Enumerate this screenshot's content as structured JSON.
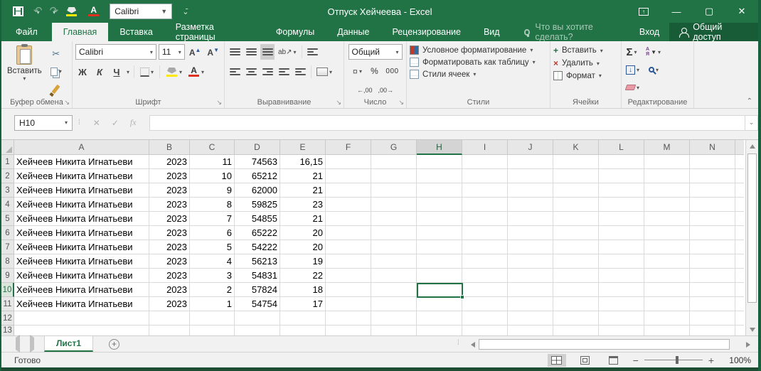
{
  "colors": {
    "excel_green": "#217346",
    "fill_yellow": "#ffe800",
    "font_red": "#e0301e"
  },
  "titlebar": {
    "title": "Отпуск Хейчеева - Excel",
    "font_combo": "Calibri"
  },
  "menu": {
    "file": "Файл",
    "tabs": [
      "Главная",
      "Вставка",
      "Разметка страницы",
      "Формулы",
      "Данные",
      "Рецензирование",
      "Вид"
    ],
    "tell_me": "Что вы хотите сделать?",
    "sign_in": "Вход",
    "share": "Общий доступ"
  },
  "ribbon": {
    "clipboard": {
      "paste": "Вставить",
      "label": "Буфер обмена"
    },
    "font": {
      "name": "Calibri",
      "size": "11",
      "bold": "Ж",
      "italic": "К",
      "underline": "Ч",
      "label": "Шрифт"
    },
    "alignment": {
      "label": "Выравнивание"
    },
    "number": {
      "format": "Общий",
      "percent": "%",
      "thousands": "000",
      "label": "Число"
    },
    "styles": {
      "conditional": "Условное форматирование",
      "format_table": "Форматировать как таблицу",
      "cell_styles": "Стили ячеек",
      "label": "Стили"
    },
    "cells": {
      "insert": "Вставить",
      "remove": "Удалить",
      "format": "Формат",
      "label": "Ячейки"
    },
    "editing": {
      "autosum": "Σ",
      "label": "Редактирование"
    }
  },
  "formula_bar": {
    "name_box": "H10",
    "fx": "fx",
    "value": ""
  },
  "grid": {
    "columns": [
      "A",
      "B",
      "C",
      "D",
      "E",
      "F",
      "G",
      "H",
      "I",
      "J",
      "K",
      "L",
      "M",
      "N"
    ],
    "selected_cell": "H10",
    "rows": [
      {
        "n": "1",
        "name": "Хейчеев Никита Игнатьеви",
        "year": "2023",
        "month": "11",
        "salary": "74563",
        "days": "16,15"
      },
      {
        "n": "2",
        "name": "Хейчеев Никита Игнатьеви",
        "year": "2023",
        "month": "10",
        "salary": "65212",
        "days": "21"
      },
      {
        "n": "3",
        "name": "Хейчеев Никита Игнатьеви",
        "year": "2023",
        "month": "9",
        "salary": "62000",
        "days": "21"
      },
      {
        "n": "4",
        "name": "Хейчеев Никита Игнатьеви",
        "year": "2023",
        "month": "8",
        "salary": "59825",
        "days": "23"
      },
      {
        "n": "5",
        "name": "Хейчеев Никита Игнатьеви",
        "year": "2023",
        "month": "7",
        "salary": "54855",
        "days": "21"
      },
      {
        "n": "6",
        "name": "Хейчеев Никита Игнатьеви",
        "year": "2023",
        "month": "6",
        "salary": "65222",
        "days": "20"
      },
      {
        "n": "7",
        "name": "Хейчеев Никита Игнатьеви",
        "year": "2023",
        "month": "5",
        "salary": "54222",
        "days": "20"
      },
      {
        "n": "8",
        "name": "Хейчеев Никита Игнатьеви",
        "year": "2023",
        "month": "4",
        "salary": "56213",
        "days": "19"
      },
      {
        "n": "9",
        "name": "Хейчеев Никита Игнатьеви",
        "year": "2023",
        "month": "3",
        "salary": "54831",
        "days": "22"
      },
      {
        "n": "10",
        "name": "Хейчеев Никита Игнатьеви",
        "year": "2023",
        "month": "2",
        "salary": "57824",
        "days": "18"
      },
      {
        "n": "11",
        "name": "Хейчеев Никита Игнатьеви",
        "year": "2023",
        "month": "1",
        "salary": "54754",
        "days": "17"
      }
    ],
    "empty_row_numbers": [
      "12",
      "13"
    ]
  },
  "sheet_tabs": {
    "active": "Лист1"
  },
  "status_bar": {
    "mode": "Готово",
    "zoom": "100%"
  }
}
